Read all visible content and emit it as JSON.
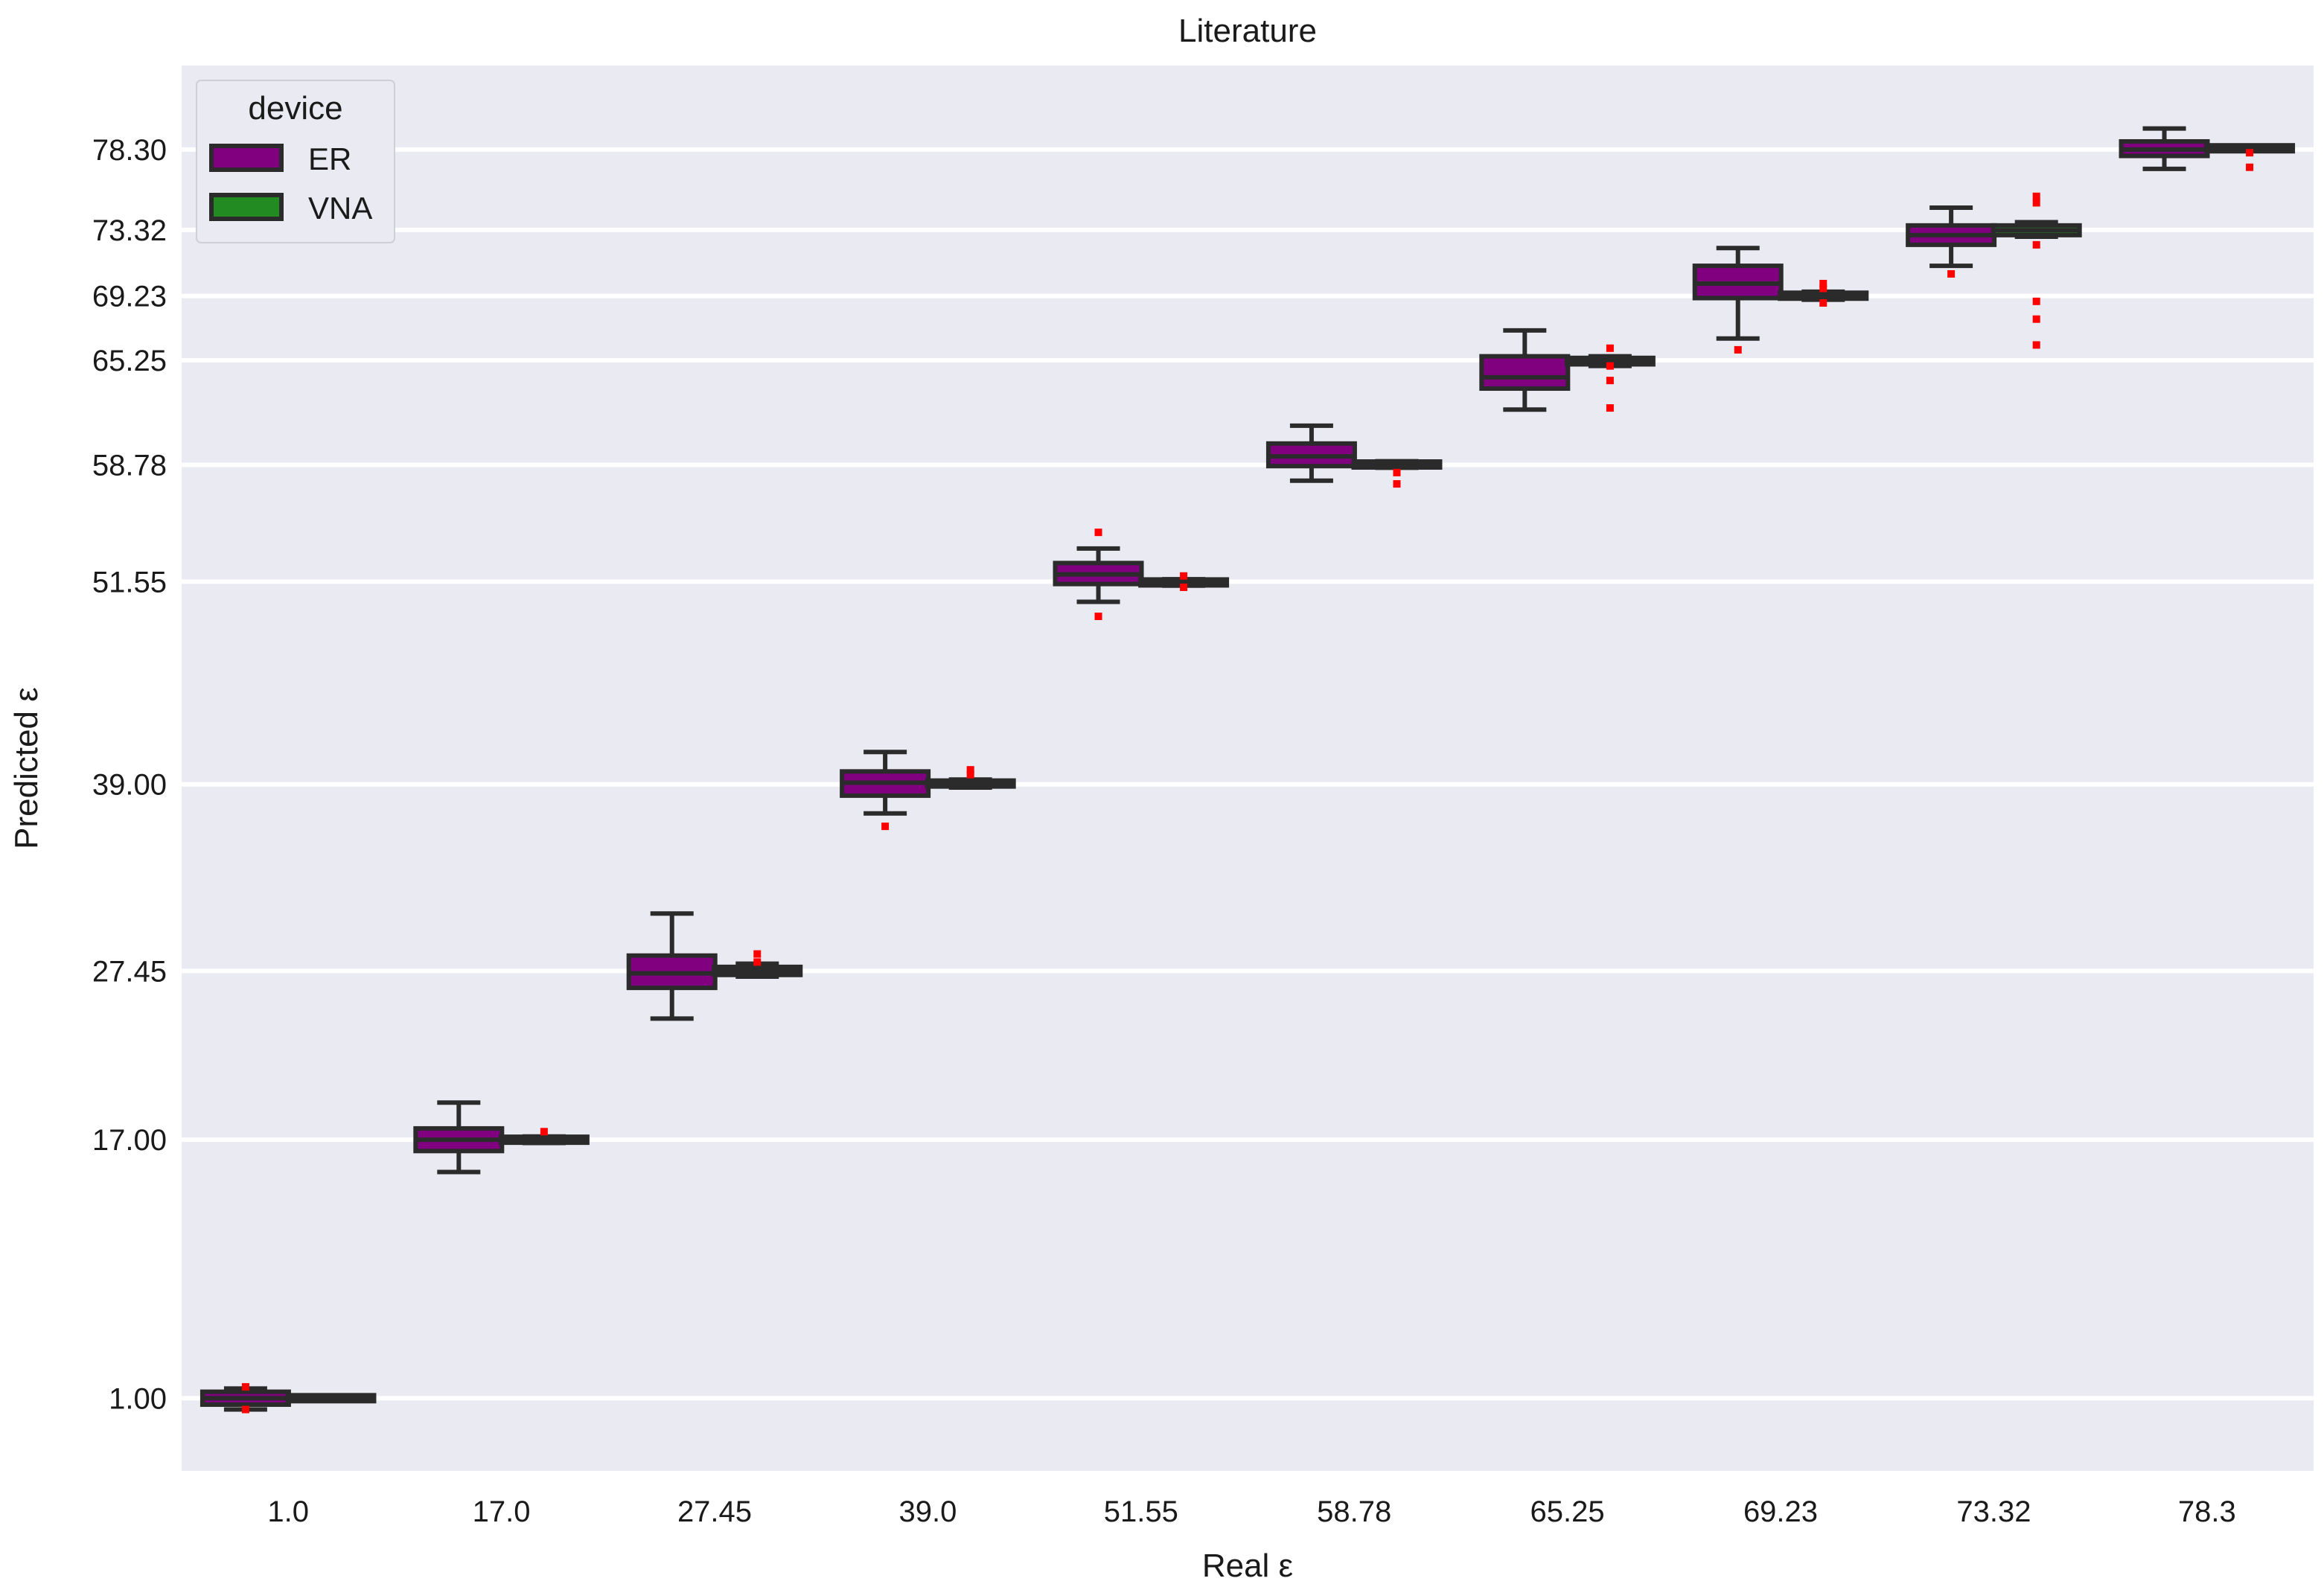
{
  "chart_data": {
    "type": "box",
    "title": "Literature",
    "xlabel": "Real ε",
    "ylabel": "Predicted ε",
    "categories": [
      "1.0",
      "17.0",
      "27.45",
      "39.0",
      "51.55",
      "58.78",
      "65.25",
      "69.23",
      "73.32",
      "78.3"
    ],
    "yticks": [
      1.0,
      17.0,
      27.45,
      39.0,
      51.55,
      58.78,
      65.25,
      69.23,
      73.32,
      78.3
    ],
    "ytick_labels": [
      "1.00",
      "17.00",
      "27.45",
      "39.00",
      "51.55",
      "58.78",
      "65.25",
      "69.23",
      "73.32",
      "78.30"
    ],
    "ylim": [
      -3.5,
      83.5
    ],
    "grid": "horizontal",
    "legend": {
      "title": "device",
      "placement": "top-left",
      "entries": [
        {
          "name": "ER",
          "color": "#800080"
        },
        {
          "name": "VNA",
          "color": "#228b22"
        }
      ]
    },
    "outlier_color": "#ff0000",
    "series": [
      {
        "name": "ER",
        "color": "#800080",
        "boxes": [
          {
            "whisker_low": 0.3,
            "q1": 0.6,
            "median": 1.0,
            "q3": 1.4,
            "whisker_high": 1.6,
            "outliers": [
              0.3,
              1.7
            ]
          },
          {
            "whisker_low": 15.0,
            "q1": 16.3,
            "median": 17.0,
            "q3": 17.7,
            "whisker_high": 19.3,
            "outliers": []
          },
          {
            "whisker_low": 24.5,
            "q1": 26.4,
            "median": 27.3,
            "q3": 28.4,
            "whisker_high": 31.0,
            "outliers": []
          },
          {
            "whisker_low": 37.2,
            "q1": 38.3,
            "median": 39.1,
            "q3": 39.8,
            "whisker_high": 41.0,
            "outliers": [
              36.4
            ]
          },
          {
            "whisker_low": 50.3,
            "q1": 51.4,
            "median": 52.0,
            "q3": 52.7,
            "whisker_high": 53.6,
            "outliers": [
              54.6,
              49.4
            ]
          },
          {
            "whisker_low": 57.8,
            "q1": 58.7,
            "median": 59.3,
            "q3": 60.1,
            "whisker_high": 61.2,
            "outliers": []
          },
          {
            "whisker_low": 62.2,
            "q1": 63.5,
            "median": 64.2,
            "q3": 65.5,
            "whisker_high": 67.1,
            "outliers": []
          },
          {
            "whisker_low": 66.6,
            "q1": 69.1,
            "median": 70.0,
            "q3": 71.1,
            "whisker_high": 72.2,
            "outliers": [
              65.9
            ]
          },
          {
            "whisker_low": 71.1,
            "q1": 72.4,
            "median": 73.0,
            "q3": 73.6,
            "whisker_high": 74.7,
            "outliers": [
              70.6
            ]
          },
          {
            "whisker_low": 77.1,
            "q1": 77.9,
            "median": 78.3,
            "q3": 78.8,
            "whisker_high": 79.6,
            "outliers": []
          }
        ]
      },
      {
        "name": "VNA",
        "color": "#228b22",
        "boxes": [
          {
            "whisker_low": 0.85,
            "q1": 0.9,
            "median": 1.0,
            "q3": 1.1,
            "whisker_high": 1.15,
            "outliers": []
          },
          {
            "whisker_low": 16.8,
            "q1": 16.9,
            "median": 17.0,
            "q3": 17.1,
            "whisker_high": 17.2,
            "outliers": [
              17.5
            ]
          },
          {
            "whisker_low": 27.1,
            "q1": 27.2,
            "median": 27.45,
            "q3": 27.7,
            "whisker_high": 27.9,
            "outliers": [
              28.5,
              28.0
            ]
          },
          {
            "whisker_low": 38.8,
            "q1": 38.9,
            "median": 39.0,
            "q3": 39.2,
            "whisker_high": 39.3,
            "outliers": [
              39.9,
              39.6
            ]
          },
          {
            "whisker_low": 51.3,
            "q1": 51.4,
            "median": 51.5,
            "q3": 51.6,
            "whisker_high": 51.7,
            "outliers": [
              51.9,
              51.2
            ]
          },
          {
            "whisker_low": 58.6,
            "q1": 58.7,
            "median": 58.8,
            "q3": 58.9,
            "whisker_high": 59.0,
            "outliers": [
              58.3,
              57.6
            ]
          },
          {
            "whisker_low": 64.9,
            "q1": 65.0,
            "median": 65.2,
            "q3": 65.4,
            "whisker_high": 65.5,
            "outliers": [
              66.0,
              64.9,
              64.0,
              62.3
            ]
          },
          {
            "whisker_low": 69.0,
            "q1": 69.1,
            "median": 69.25,
            "q3": 69.4,
            "whisker_high": 69.5,
            "outliers": [
              70.0,
              69.7,
              68.8
            ]
          },
          {
            "whisker_low": 72.9,
            "q1": 73.0,
            "median": 73.3,
            "q3": 73.6,
            "whisker_high": 73.8,
            "outliers": [
              75.4,
              75.0,
              72.4,
              68.9,
              67.8,
              66.2
            ]
          },
          {
            "whisker_low": 78.25,
            "q1": 78.3,
            "median": 78.35,
            "q3": 78.45,
            "whisker_high": 78.5,
            "outliers": [
              78.1,
              77.2
            ]
          }
        ]
      }
    ]
  }
}
